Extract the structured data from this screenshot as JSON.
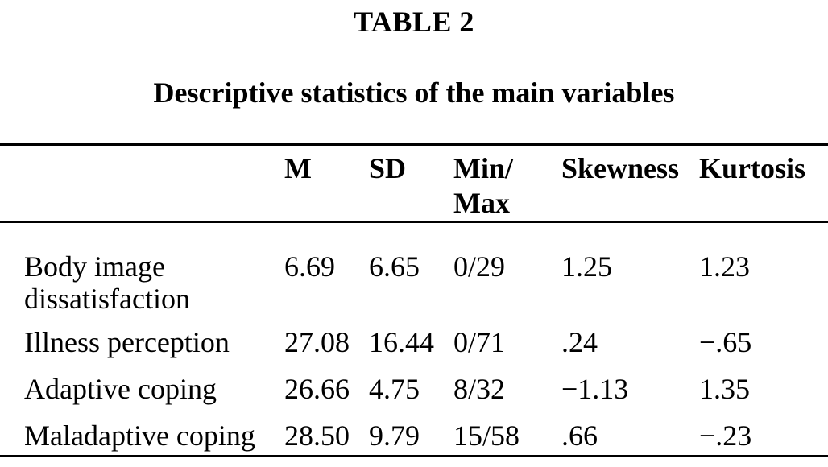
{
  "page": {
    "background_color": "#ffffff",
    "text_color": "#000000"
  },
  "table": {
    "label": "TABLE 2",
    "caption": "Descriptive statistics of the main variables",
    "columns": [
      "",
      "M",
      "SD",
      "Min/\nMax",
      "Skewness",
      "Kurtosis"
    ],
    "rows": [
      {
        "variable": "Body image dissatisfaction",
        "m": "6.69",
        "sd": "6.65",
        "min_max": "0/29",
        "skewness": "1.25",
        "kurtosis": "1.23"
      },
      {
        "variable": "Illness perception",
        "m": "27.08",
        "sd": "16.44",
        "min_max": "0/71",
        "skewness": ".24",
        "kurtosis": "−.65"
      },
      {
        "variable": "Adaptive coping",
        "m": "26.66",
        "sd": "4.75",
        "min_max": "8/32",
        "skewness": "−1.13",
        "kurtosis": "1.35"
      },
      {
        "variable": "Maladaptive coping",
        "m": "28.50",
        "sd": "9.79",
        "min_max": "15/58",
        "skewness": ".66",
        "kurtosis": "−.23"
      }
    ]
  }
}
